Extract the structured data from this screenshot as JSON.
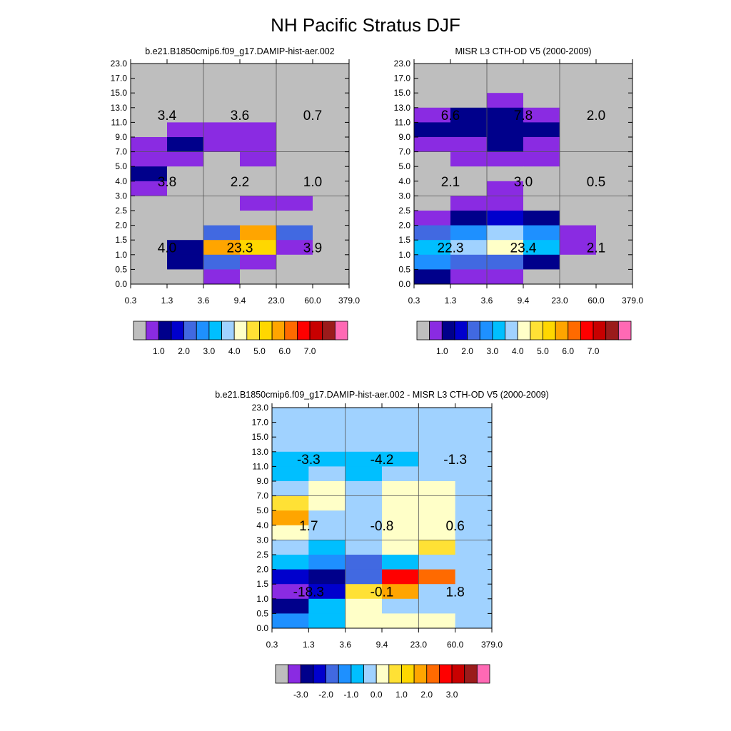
{
  "page": {
    "title": "NH Pacific Stratus DJF"
  },
  "chart_data": [
    {
      "type": "heatmap",
      "title": "b.e21.B1850cmip6.f09_g17.DAMIP-hist-aer.002",
      "x_ticks": [
        "0.3",
        "1.3",
        "3.6",
        "9.4",
        "23.0",
        "60.0",
        "379.0"
      ],
      "y_ticks": [
        "0.0",
        "0.5",
        "1.0",
        "1.5",
        "2.0",
        "2.5",
        "3.0",
        "4.0",
        "5.0",
        "7.0",
        "9.0",
        "11.0",
        "13.0",
        "15.0",
        "17.0",
        "23.0"
      ],
      "cells_top_to_bottom": [
        [
          "gray",
          "gray",
          "gray",
          "gray",
          "gray",
          "gray"
        ],
        [
          "gray",
          "gray",
          "gray",
          "gray",
          "gray",
          "gray"
        ],
        [
          "gray",
          "gray",
          "gray",
          "gray",
          "gray",
          "gray"
        ],
        [
          "gray",
          "gray",
          "gray",
          "gray",
          "gray",
          "gray"
        ],
        [
          "gray",
          "purple",
          "purple",
          "purple",
          "gray",
          "gray"
        ],
        [
          "purple",
          "navy",
          "purple",
          "purple",
          "gray",
          "gray"
        ],
        [
          "purple",
          "purple",
          "gray",
          "purple",
          "gray",
          "gray"
        ],
        [
          "navy",
          "gray",
          "gray",
          "gray",
          "gray",
          "gray"
        ],
        [
          "purple",
          "gray",
          "gray",
          "gray",
          "gray",
          "gray"
        ],
        [
          "gray",
          "gray",
          "gray",
          "purple",
          "purple",
          "gray"
        ],
        [
          "gray",
          "gray",
          "gray",
          "gray",
          "gray",
          "gray"
        ],
        [
          "gray",
          "gray",
          "royalblue",
          "orange",
          "royalblue",
          "gray"
        ],
        [
          "gray",
          "navy",
          "orange",
          "gold",
          "purple",
          "gray"
        ],
        [
          "gray",
          "navy",
          "royalblue",
          "purple",
          "gray",
          "gray"
        ],
        [
          "gray",
          "gray",
          "purple",
          "gray",
          "gray",
          "gray"
        ]
      ],
      "annotations": [
        {
          "text": "3.4",
          "col": 0.5,
          "row": 3
        },
        {
          "text": "3.6",
          "col": 2.5,
          "row": 3
        },
        {
          "text": "0.7",
          "col": 4.5,
          "row": 3
        },
        {
          "text": "3.8",
          "col": 0.5,
          "row": 7.5
        },
        {
          "text": "2.2",
          "col": 2.5,
          "row": 7.5
        },
        {
          "text": "1.0",
          "col": 4.5,
          "row": 7.5
        },
        {
          "text": "4.0",
          "col": 0.5,
          "row": 12
        },
        {
          "text": "23.3",
          "col": 2.5,
          "row": 12
        },
        {
          "text": "3.9",
          "col": 4.5,
          "row": 12
        }
      ],
      "colorbar": {
        "colors": [
          "#bebebe",
          "#8a2be2",
          "#00008b",
          "#0000cd",
          "#4169e1",
          "#1e90ff",
          "#00bfff",
          "#a0d2ff",
          "#ffffc8",
          "#ffe135",
          "#ffd700",
          "#ffa500",
          "#ff6a00",
          "#ff0000",
          "#c80000",
          "#9b1b1b",
          "#ff69b4"
        ],
        "labels": [
          "1.0",
          "2.0",
          "3.0",
          "4.0",
          "5.0",
          "6.0",
          "7.0"
        ]
      }
    },
    {
      "type": "heatmap",
      "title": "MISR L3 CTH-OD V5 (2000-2009)",
      "x_ticks": [
        "0.3",
        "1.3",
        "3.6",
        "9.4",
        "23.0",
        "60.0",
        "379.0"
      ],
      "y_ticks": [
        "0.0",
        "0.5",
        "1.0",
        "1.5",
        "2.0",
        "2.5",
        "3.0",
        "4.0",
        "5.0",
        "7.0",
        "9.0",
        "11.0",
        "13.0",
        "15.0",
        "17.0",
        "23.0"
      ],
      "cells_top_to_bottom": [
        [
          "gray",
          "gray",
          "gray",
          "gray",
          "gray",
          "gray"
        ],
        [
          "gray",
          "gray",
          "gray",
          "gray",
          "gray",
          "gray"
        ],
        [
          "gray",
          "gray",
          "purple",
          "gray",
          "gray",
          "gray"
        ],
        [
          "purple",
          "navy",
          "navy",
          "purple",
          "gray",
          "gray"
        ],
        [
          "navy",
          "navy",
          "navy",
          "navy",
          "gray",
          "gray"
        ],
        [
          "purple",
          "purple",
          "navy",
          "purple",
          "gray",
          "gray"
        ],
        [
          "gray",
          "purple",
          "purple",
          "purple",
          "gray",
          "gray"
        ],
        [
          "gray",
          "gray",
          "gray",
          "gray",
          "gray",
          "gray"
        ],
        [
          "gray",
          "gray",
          "purple",
          "gray",
          "gray",
          "gray"
        ],
        [
          "gray",
          "purple",
          "purple",
          "gray",
          "gray",
          "gray"
        ],
        [
          "purple",
          "navy",
          "medblue",
          "navy",
          "gray",
          "gray"
        ],
        [
          "royalblue",
          "dodger",
          "lightblue",
          "dodger",
          "purple",
          "gray"
        ],
        [
          "deepsky",
          "lightblue",
          "cream",
          "deepsky",
          "purple",
          "gray"
        ],
        [
          "dodger",
          "royalblue",
          "royalblue",
          "navy",
          "gray",
          "gray"
        ],
        [
          "navy",
          "purple",
          "purple",
          "gray",
          "gray",
          "gray"
        ]
      ],
      "annotations": [
        {
          "text": "6.6",
          "col": 0.5,
          "row": 3
        },
        {
          "text": "7.8",
          "col": 2.5,
          "row": 3
        },
        {
          "text": "2.0",
          "col": 4.5,
          "row": 3
        },
        {
          "text": "2.1",
          "col": 0.5,
          "row": 7.5
        },
        {
          "text": "3.0",
          "col": 2.5,
          "row": 7.5
        },
        {
          "text": "0.5",
          "col": 4.5,
          "row": 7.5
        },
        {
          "text": "22.3",
          "col": 0.5,
          "row": 12
        },
        {
          "text": "23.4",
          "col": 2.5,
          "row": 12
        },
        {
          "text": "2.1",
          "col": 4.5,
          "row": 12
        }
      ],
      "colorbar": {
        "colors": [
          "#bebebe",
          "#8a2be2",
          "#00008b",
          "#0000cd",
          "#4169e1",
          "#1e90ff",
          "#00bfff",
          "#a0d2ff",
          "#ffffc8",
          "#ffe135",
          "#ffd700",
          "#ffa500",
          "#ff6a00",
          "#ff0000",
          "#c80000",
          "#9b1b1b",
          "#ff69b4"
        ],
        "labels": [
          "1.0",
          "2.0",
          "3.0",
          "4.0",
          "5.0",
          "6.0",
          "7.0"
        ]
      }
    },
    {
      "type": "heatmap",
      "title": "b.e21.B1850cmip6.f09_g17.DAMIP-hist-aer.002 - MISR L3 CTH-OD V5 (2000-2009)",
      "x_ticks": [
        "0.3",
        "1.3",
        "3.6",
        "9.4",
        "23.0",
        "60.0",
        "379.0"
      ],
      "y_ticks": [
        "0.0",
        "0.5",
        "1.0",
        "1.5",
        "2.0",
        "2.5",
        "3.0",
        "4.0",
        "5.0",
        "7.0",
        "9.0",
        "11.0",
        "13.0",
        "15.0",
        "17.0",
        "23.0"
      ],
      "cells_top_to_bottom": [
        [
          "lightblue",
          "lightblue",
          "lightblue",
          "lightblue",
          "lightblue",
          "lightblue"
        ],
        [
          "lightblue",
          "lightblue",
          "lightblue",
          "lightblue",
          "lightblue",
          "lightblue"
        ],
        [
          "lightblue",
          "lightblue",
          "lightblue",
          "lightblue",
          "lightblue",
          "lightblue"
        ],
        [
          "deepsky",
          "deepsky",
          "deepsky",
          "deepsky",
          "lightblue",
          "lightblue"
        ],
        [
          "deepsky",
          "lightblue",
          "deepsky",
          "lightblue",
          "lightblue",
          "lightblue"
        ],
        [
          "lightblue",
          "cream",
          "lightblue",
          "cream",
          "cream",
          "lightblue"
        ],
        [
          "yellow",
          "cream",
          "lightblue",
          "cream",
          "cream",
          "lightblue"
        ],
        [
          "orange",
          "lightblue",
          "lightblue",
          "cream",
          "cream",
          "lightblue"
        ],
        [
          "cream",
          "lightblue",
          "lightblue",
          "cream",
          "cream",
          "lightblue"
        ],
        [
          "lightblue",
          "deepsky",
          "lightblue",
          "cream",
          "yellow",
          "lightblue"
        ],
        [
          "deepsky",
          "dodger",
          "royalblue",
          "deepsky",
          "lightblue",
          "lightblue"
        ],
        [
          "medblue",
          "navy",
          "royalblue",
          "red",
          "orangered",
          "lightblue"
        ],
        [
          "purple",
          "medblue",
          "yellow",
          "orange",
          "lightblue",
          "lightblue"
        ],
        [
          "navy",
          "deepsky",
          "cream",
          "lightblue",
          "lightblue",
          "lightblue"
        ],
        [
          "dodger",
          "deepsky",
          "cream",
          "cream",
          "cream",
          "lightblue"
        ]
      ],
      "annotations": [
        {
          "text": "-3.3",
          "col": 0.5,
          "row": 3
        },
        {
          "text": "-4.2",
          "col": 2.5,
          "row": 3
        },
        {
          "text": "-1.3",
          "col": 4.5,
          "row": 3
        },
        {
          "text": "1.7",
          "col": 0.5,
          "row": 7.5
        },
        {
          "text": "-0.8",
          "col": 2.5,
          "row": 7.5
        },
        {
          "text": "0.6",
          "col": 4.5,
          "row": 7.5
        },
        {
          "text": "-18.3",
          "col": 0.5,
          "row": 12
        },
        {
          "text": "-0.1",
          "col": 2.5,
          "row": 12
        },
        {
          "text": "1.8",
          "col": 4.5,
          "row": 12
        }
      ],
      "colorbar": {
        "colors": [
          "#bebebe",
          "#8a2be2",
          "#00008b",
          "#0000cd",
          "#4169e1",
          "#1e90ff",
          "#00bfff",
          "#a0d2ff",
          "#ffffc8",
          "#ffe135",
          "#ffd700",
          "#ffa500",
          "#ff6a00",
          "#ff0000",
          "#c80000",
          "#9b1b1b",
          "#ff69b4"
        ],
        "labels": [
          "-3.0",
          "-2.0",
          "-1.0",
          "0.0",
          "1.0",
          "2.0",
          "3.0"
        ]
      }
    }
  ],
  "palette": {
    "gray": "#bebebe",
    "purple": "#8a2be2",
    "navy": "#00008b",
    "medblue": "#0000cd",
    "royalblue": "#4169e1",
    "dodger": "#1e90ff",
    "deepsky": "#00bfff",
    "lightblue": "#a0d2ff",
    "cream": "#ffffc8",
    "yellow": "#ffe135",
    "gold": "#ffd700",
    "orange": "#ffa500",
    "orangered": "#ff6a00",
    "red": "#ff0000"
  }
}
